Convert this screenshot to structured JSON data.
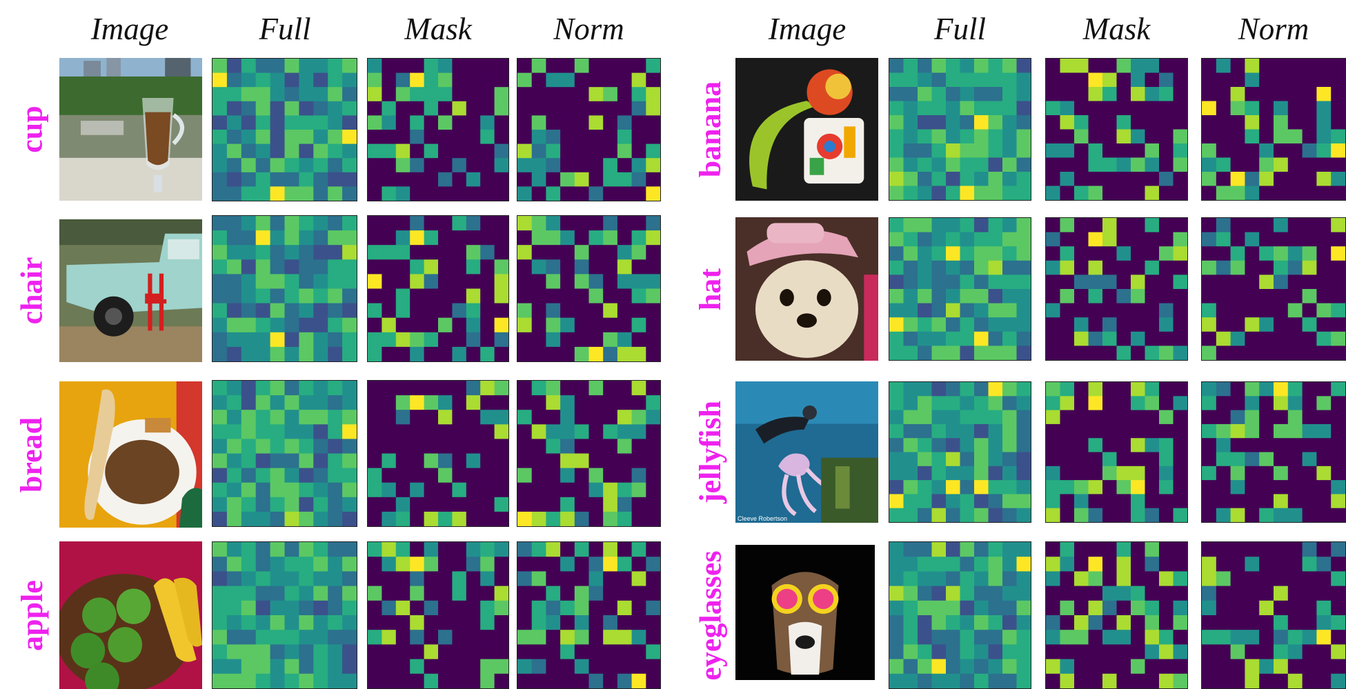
{
  "headers": [
    "Image",
    "Full",
    "Mask",
    "Norm",
    "Image",
    "Full",
    "Mask",
    "Norm"
  ],
  "labels_left": [
    "cup",
    "chair",
    "bread",
    "apple"
  ],
  "labels_right": [
    "banana",
    "hat",
    "jellyfish",
    "eyeglasses"
  ],
  "photo_caption": "Cleeve Robertson",
  "colors": {
    "label": "#ee22ee",
    "viridis_low": "#440154",
    "viridis_mid": "#21918c",
    "viridis_high": "#fde725"
  }
}
